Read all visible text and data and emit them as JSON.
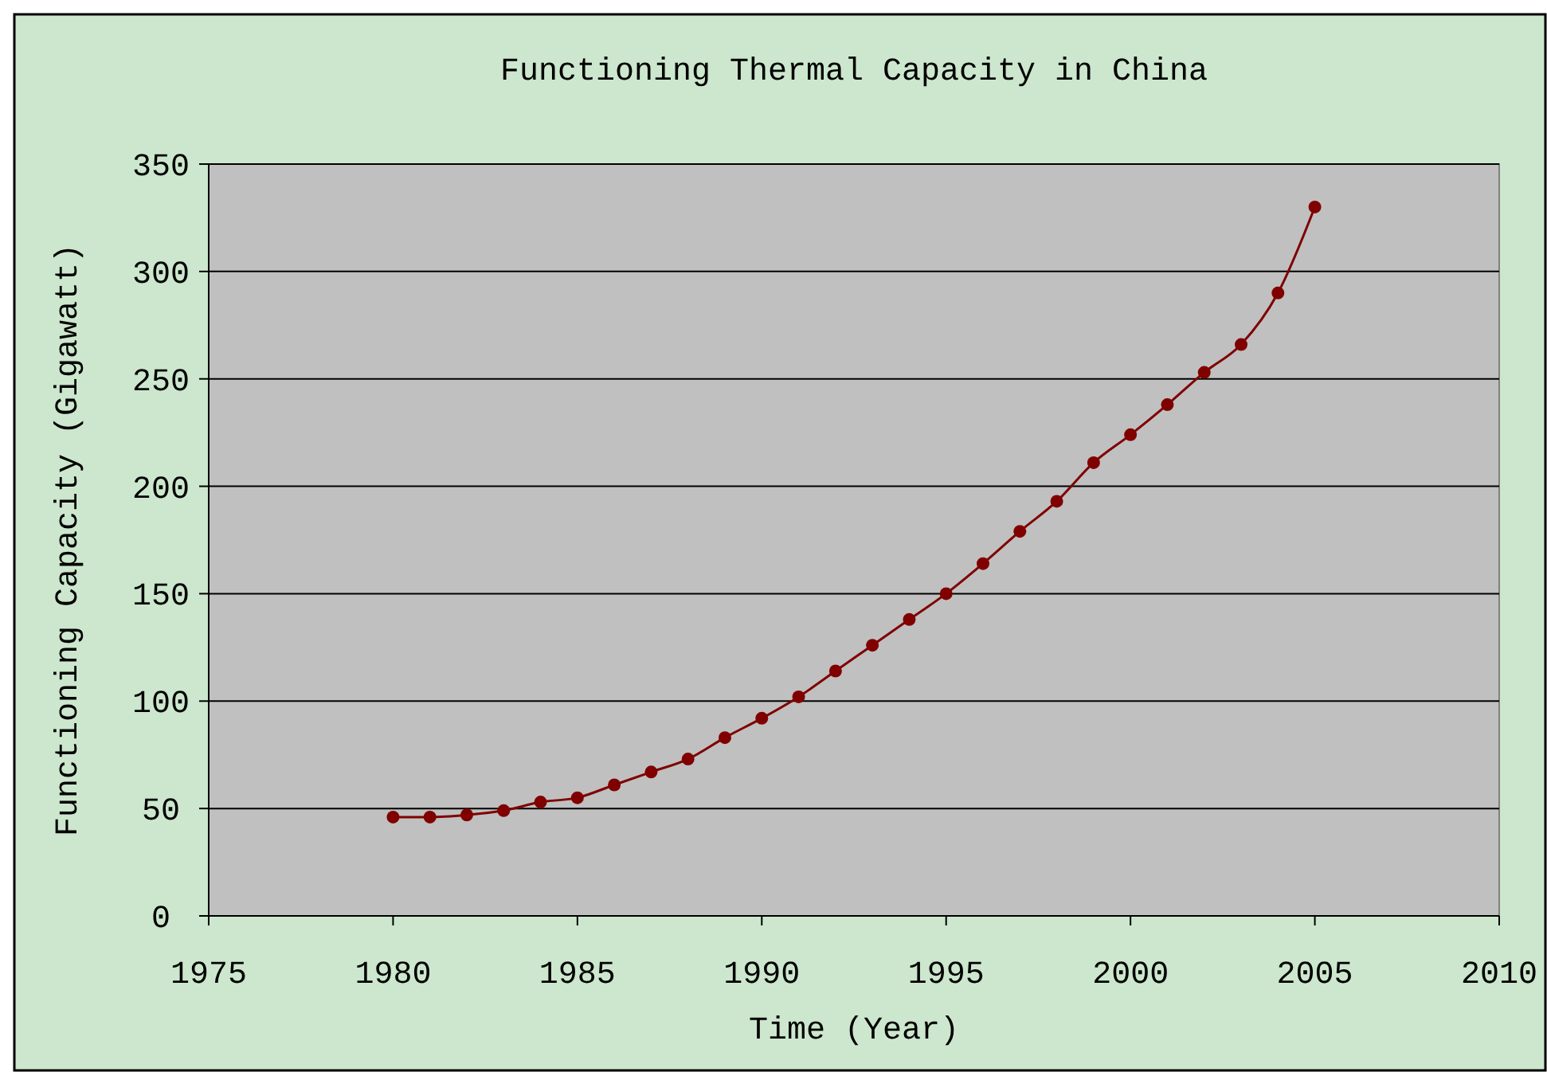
{
  "chart_data": {
    "type": "line",
    "title": "Functioning Thermal Capacity in China",
    "xlabel": "Time (Year)",
    "ylabel": "Functioning Capacity (Gigawatt)",
    "x": [
      1980,
      1981,
      1982,
      1983,
      1984,
      1985,
      1986,
      1987,
      1988,
      1989,
      1990,
      1991,
      1992,
      1993,
      1994,
      1995,
      1996,
      1997,
      1998,
      1999,
      2000,
      2001,
      2002,
      2003,
      2004,
      2005
    ],
    "series": [
      {
        "color": "#800000",
        "values": [
          46,
          46,
          47,
          49,
          53,
          55,
          61,
          67,
          73,
          83,
          92,
          102,
          114,
          126,
          138,
          150,
          164,
          179,
          193,
          211,
          224,
          238,
          253,
          266,
          290,
          330
        ]
      }
    ],
    "xlim": [
      1975,
      2010
    ],
    "xticks": [
      1975,
      1980,
      1985,
      1990,
      1995,
      2000,
      2005,
      2010
    ],
    "ylim": [
      0,
      350
    ],
    "yticks": [
      0,
      50,
      100,
      150,
      200,
      250,
      300,
      350
    ],
    "grid": "y",
    "marker": "circle",
    "line_style": "solid"
  }
}
